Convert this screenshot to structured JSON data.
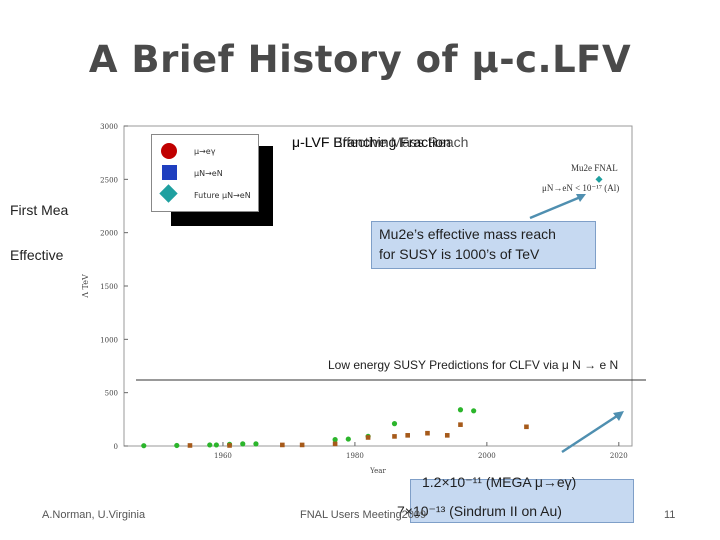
{
  "slide": {
    "title": "A Brief History of μ-c.LFV",
    "page_number": "11",
    "footer_left": "A.Norman, U.Virginia",
    "footer_mid": "FNAL Users Meeting2009",
    "overlay_first_measurement": "First Mea",
    "overlay_effective": "Effective",
    "plot_title_a": "μ-LVF Branching Fraction",
    "plot_title_b": "μ-LVF Effective Mass Reach",
    "mu2e_callout_line1": "Mu2e’s effective mass reach",
    "mu2e_callout_line2": "for SUSY is 1000’s of TeV",
    "susy_label": "Low energy SUSY Predictions for CLFV via μ N → e N",
    "bound_line1": "1.2×10⁻¹¹ (MEGA μ→eγ)",
    "bound_line2": "7×10⁻¹³ (Sindrum II on Au)",
    "mu2e_annotation_a": "Mu2e FNAL",
    "mu2e_annotation_b": "μN→eN < 10⁻¹⁷ (Al)"
  },
  "colors": {
    "title": "#4a4a4a",
    "callout_bg": "#c6d9f1",
    "callout_border": "#7f9fc8",
    "arrow": "#4f8fb0",
    "mu_egamma": "#c00000",
    "muN_eN": "#1f3fbf",
    "future": "#1fa0a0",
    "green_points": "#2bb52b",
    "brown_points": "#a65a1a"
  },
  "chart_data": {
    "type": "scatter",
    "xlabel": "Year",
    "ylabel": "Λ TeV",
    "xlim": [
      1945,
      2022
    ],
    "ylim": [
      0,
      3000
    ],
    "x_ticks": [
      "1960",
      "1980",
      "2000",
      "2020"
    ],
    "y_ticks": [
      "0",
      "500",
      "1000",
      "1500",
      "2000",
      "2500",
      "3000"
    ],
    "legend": [
      "μ→eγ",
      "μN→eN",
      "Future μN→eN"
    ],
    "series": [
      {
        "name": "green",
        "points": [
          [
            1948,
            3
          ],
          [
            1953,
            5
          ],
          [
            1958,
            10
          ],
          [
            1959,
            10
          ],
          [
            1961,
            15
          ],
          [
            1963,
            20
          ],
          [
            1965,
            20
          ],
          [
            1977,
            60
          ],
          [
            1979,
            65
          ],
          [
            1982,
            90
          ],
          [
            1986,
            210
          ],
          [
            1996,
            340
          ],
          [
            1998,
            330
          ]
        ]
      },
      {
        "name": "brown",
        "points": [
          [
            1955,
            5
          ],
          [
            1961,
            5
          ],
          [
            1969,
            10
          ],
          [
            1972,
            10
          ],
          [
            1977,
            20
          ],
          [
            1982,
            80
          ],
          [
            1986,
            90
          ],
          [
            1988,
            100
          ],
          [
            1991,
            120
          ],
          [
            1994,
            100
          ],
          [
            1996,
            200
          ],
          [
            2006,
            180
          ]
        ]
      },
      {
        "name": "future",
        "points": [
          [
            2017,
            2500
          ]
        ]
      }
    ]
  }
}
